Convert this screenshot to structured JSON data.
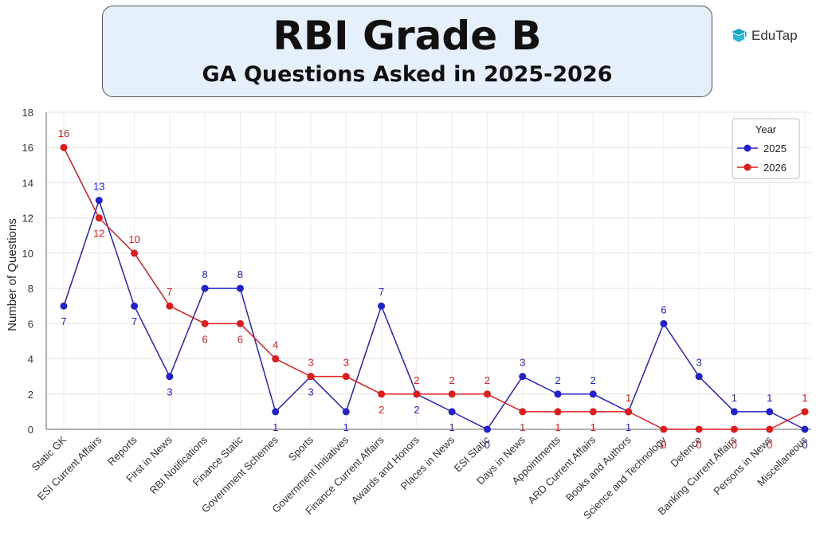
{
  "header": {
    "title": "RBI Grade B",
    "subtitle": "GA Questions Asked in 2025-2026"
  },
  "brand": {
    "name": "EduTap",
    "icon": "edutap-logo-icon"
  },
  "colors": {
    "series_2025": "#2222cc",
    "series_2026": "#e01b1b",
    "title_box_bg": "#e6f0fa"
  },
  "chart_data": {
    "type": "line",
    "categories": [
      "Static GK",
      "ESI Current Affairs",
      "Reports",
      "First in News",
      "RBI Notifications",
      "Finance Static",
      "Government Schemes",
      "Sports",
      "Government Initiatives",
      "Finance Current Affairs",
      "Awards and Honors",
      "Places in News",
      "ESI Static",
      "Days in News",
      "Appointments",
      "ARD Current Affairs",
      "Books and Authors",
      "Science and Technology",
      "Defence",
      "Banking Current Affairs",
      "Persons in News",
      "Miscellaneous"
    ],
    "series": [
      {
        "name": "2025",
        "values": [
          7,
          13,
          7,
          3,
          8,
          8,
          1,
          3,
          1,
          7,
          2,
          1,
          0,
          3,
          2,
          2,
          1,
          6,
          3,
          1,
          1,
          0
        ]
      },
      {
        "name": "2026",
        "values": [
          16,
          12,
          10,
          7,
          6,
          6,
          4,
          3,
          3,
          2,
          2,
          2,
          2,
          1,
          1,
          1,
          1,
          0,
          0,
          0,
          0,
          1
        ]
      }
    ],
    "ylabel": "Number of Questions",
    "xlabel": "",
    "ylim": [
      0,
      18
    ],
    "yticks": [
      0,
      2,
      4,
      6,
      8,
      10,
      12,
      14,
      16,
      18
    ],
    "grid": true,
    "legend": {
      "title": "Year",
      "position": "top-right"
    }
  }
}
